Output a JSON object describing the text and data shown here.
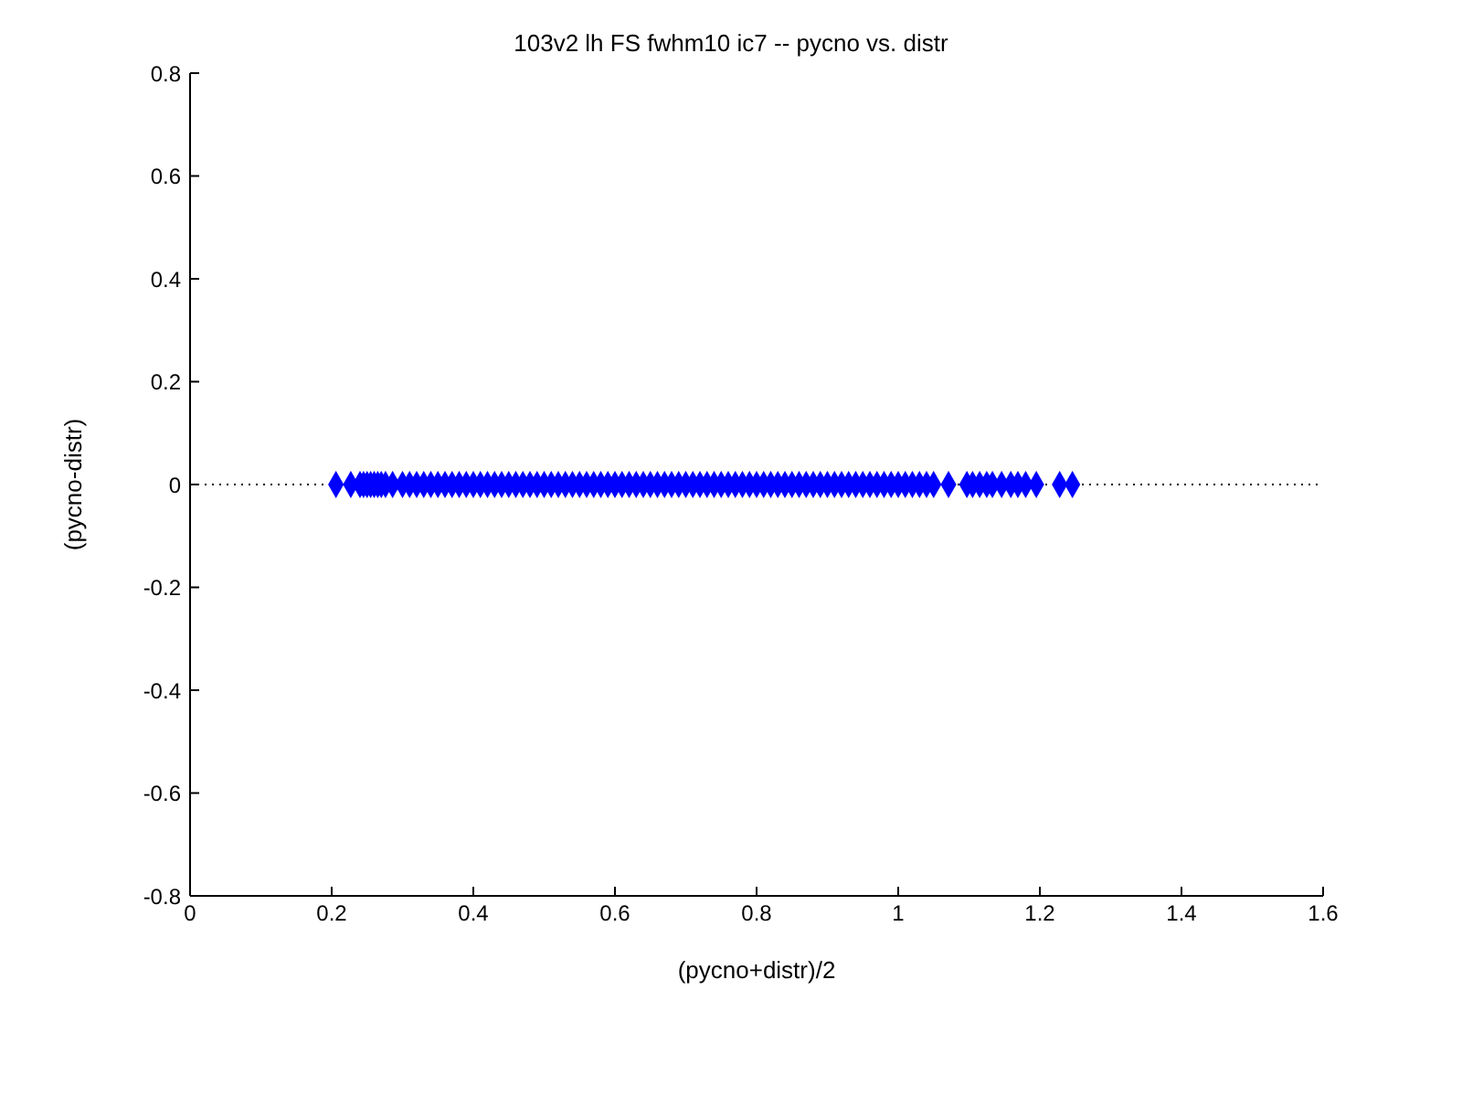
{
  "chart_data": {
    "type": "scatter",
    "title": "103v2 lh FS fwhm10 ic7 -- pycno vs. distr",
    "xlabel": "(pycno+distr)/2",
    "ylabel": "(pycno-distr)",
    "x": [
      0.206,
      0.227,
      0.24,
      0.245,
      0.25,
      0.255,
      0.26,
      0.265,
      0.27,
      0.276,
      0.286,
      0.3,
      0.31,
      0.32,
      0.33,
      0.34,
      0.35,
      0.36,
      0.37,
      0.38,
      0.39,
      0.4,
      0.41,
      0.42,
      0.43,
      0.44,
      0.45,
      0.46,
      0.47,
      0.48,
      0.49,
      0.5,
      0.51,
      0.52,
      0.53,
      0.54,
      0.55,
      0.56,
      0.57,
      0.58,
      0.59,
      0.6,
      0.61,
      0.62,
      0.63,
      0.64,
      0.65,
      0.66,
      0.67,
      0.68,
      0.69,
      0.7,
      0.71,
      0.72,
      0.73,
      0.74,
      0.75,
      0.76,
      0.77,
      0.78,
      0.79,
      0.8,
      0.81,
      0.82,
      0.83,
      0.84,
      0.85,
      0.86,
      0.87,
      0.88,
      0.89,
      0.9,
      0.91,
      0.92,
      0.93,
      0.94,
      0.95,
      0.96,
      0.97,
      0.98,
      0.99,
      1.0,
      1.01,
      1.02,
      1.03,
      1.04,
      1.05,
      1.071,
      1.097,
      1.105,
      1.115,
      1.125,
      1.133,
      1.146,
      1.159,
      1.169,
      1.18,
      1.195,
      1.228,
      1.246
    ],
    "series": [
      {
        "color": "#0000ff",
        "values": [
          0,
          0,
          0,
          0,
          0,
          0,
          0,
          0,
          0,
          0,
          0,
          0,
          0,
          0,
          0,
          0,
          0,
          0,
          0,
          0,
          0,
          0,
          0,
          0,
          0,
          0,
          0,
          0,
          0,
          0,
          0,
          0,
          0,
          0,
          0,
          0,
          0,
          0,
          0,
          0,
          0,
          0,
          0,
          0,
          0,
          0,
          0,
          0,
          0,
          0,
          0,
          0,
          0,
          0,
          0,
          0,
          0,
          0,
          0,
          0,
          0,
          0,
          0,
          0,
          0,
          0,
          0,
          0,
          0,
          0,
          0,
          0,
          0,
          0,
          0,
          0,
          0,
          0,
          0,
          0,
          0,
          0,
          0,
          0,
          0,
          0,
          0,
          0,
          0,
          0,
          0,
          0,
          0,
          0,
          0,
          0,
          0,
          0,
          0,
          0
        ]
      }
    ],
    "marker": "diamond",
    "xlim": [
      0,
      1.6
    ],
    "xticks": [
      0,
      0.2,
      0.4,
      0.6,
      0.8,
      1,
      1.2,
      1.4,
      1.6
    ],
    "ylim": [
      -0.8,
      0.8
    ],
    "yticks": [
      -0.8,
      -0.6,
      -0.4,
      -0.2,
      0,
      0.2,
      0.4,
      0.6,
      0.8
    ],
    "ref_lines": [
      {
        "axis": "y",
        "value": 0,
        "color": "#000000",
        "line_style": "dotted"
      }
    ],
    "grid": false,
    "legend": false
  }
}
